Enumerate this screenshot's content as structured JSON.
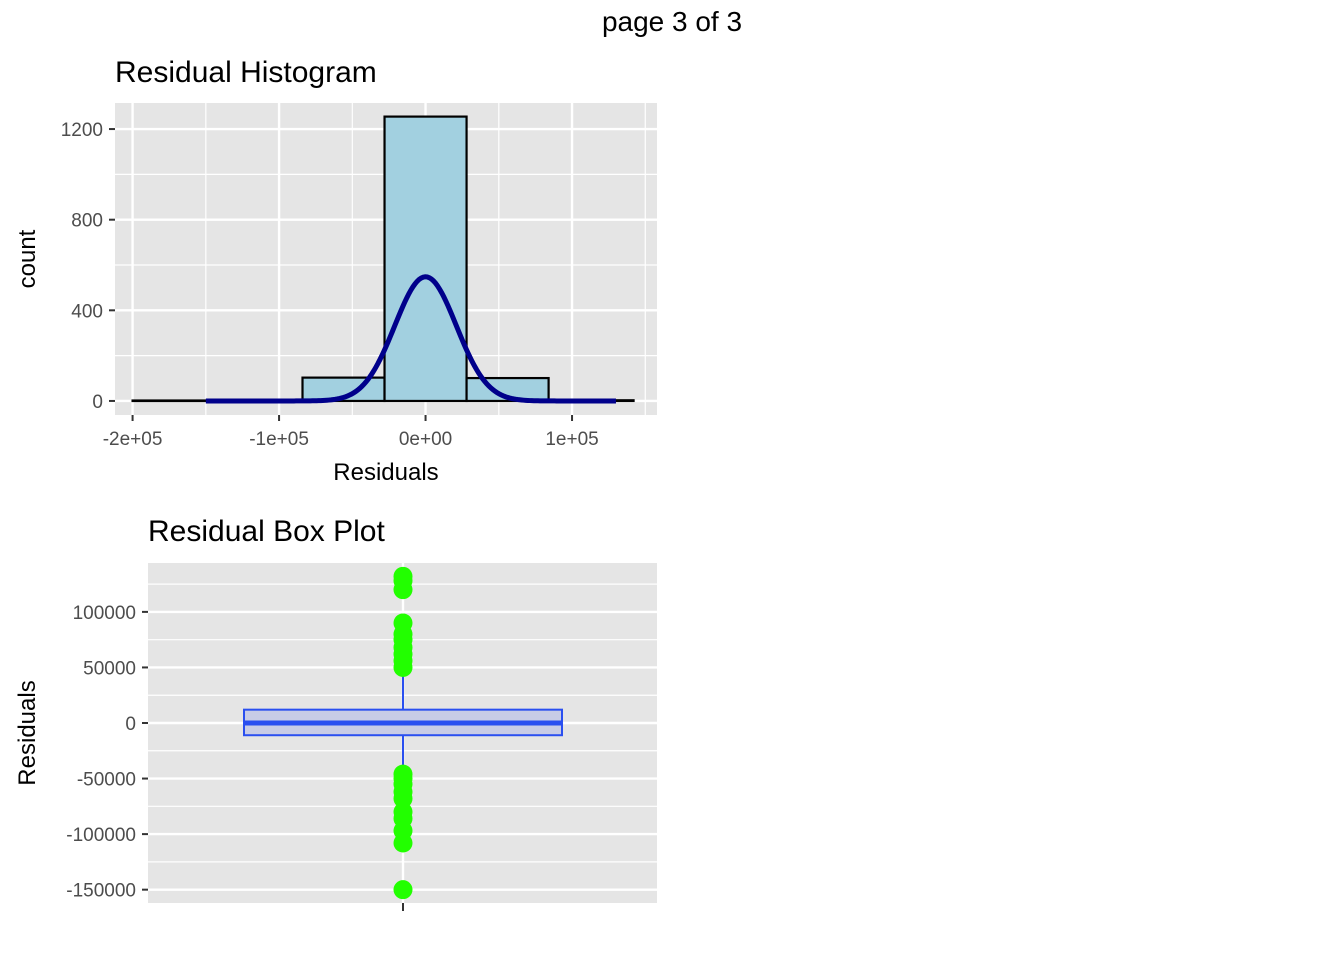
{
  "page": {
    "label": "page 3 of 3"
  },
  "chart_data": [
    {
      "type": "bar",
      "title": "Residual Histogram",
      "xlabel": "Residuals",
      "ylabel": "count",
      "x_ticks": [
        {
          "value": -200000,
          "label": "-2e+05"
        },
        {
          "value": -100000,
          "label": "-1e+05"
        },
        {
          "value": 0,
          "label": "0e+00"
        },
        {
          "value": 100000,
          "label": "1e+05"
        }
      ],
      "y_ticks": [
        0,
        400,
        800,
        1200
      ],
      "xlim": [
        -212000,
        158000
      ],
      "ylim": [
        -62,
        1315
      ],
      "bins": [
        {
          "x0": -200000,
          "x1": -84000,
          "count": 2
        },
        {
          "x0": -84000,
          "x1": -28000,
          "count": 103
        },
        {
          "x0": -28000,
          "x1": 28000,
          "count": 1255
        },
        {
          "x0": 28000,
          "x1": 84000,
          "count": 101
        },
        {
          "x0": 84000,
          "x1": 142000,
          "count": 3
        }
      ],
      "normal_curve": {
        "mean": 0,
        "sd": 21000,
        "peak": 548,
        "range": [
          -150000,
          130000
        ],
        "color": "#00008b"
      },
      "bar_fill": "#a2d0e0",
      "grid": true
    },
    {
      "type": "box",
      "title": "Residual Box Plot",
      "xlabel": "",
      "ylabel": "Residuals",
      "y_ticks": [
        {
          "value": 100000,
          "label": "100000"
        },
        {
          "value": 50000,
          "label": "50000"
        },
        {
          "value": 0,
          "label": "0"
        },
        {
          "value": -50000,
          "label": "-50000"
        },
        {
          "value": -100000,
          "label": "-100000"
        },
        {
          "value": -150000,
          "label": "-150000"
        }
      ],
      "ylim": [
        -162000,
        144000
      ],
      "box": {
        "whisker_low": -44000,
        "q1": -11000,
        "median": 0,
        "q3": 12000,
        "whisker_high": 43000
      },
      "outliers": [
        132000,
        128000,
        120000,
        90000,
        80000,
        75000,
        68000,
        62000,
        56000,
        50000,
        -46000,
        -50000,
        -55000,
        -62000,
        -68000,
        -80000,
        -86000,
        -97000,
        -108000,
        -150000
      ],
      "box_color": "#2a4ff0",
      "outlier_color": "#22ff00",
      "grid": true
    }
  ]
}
